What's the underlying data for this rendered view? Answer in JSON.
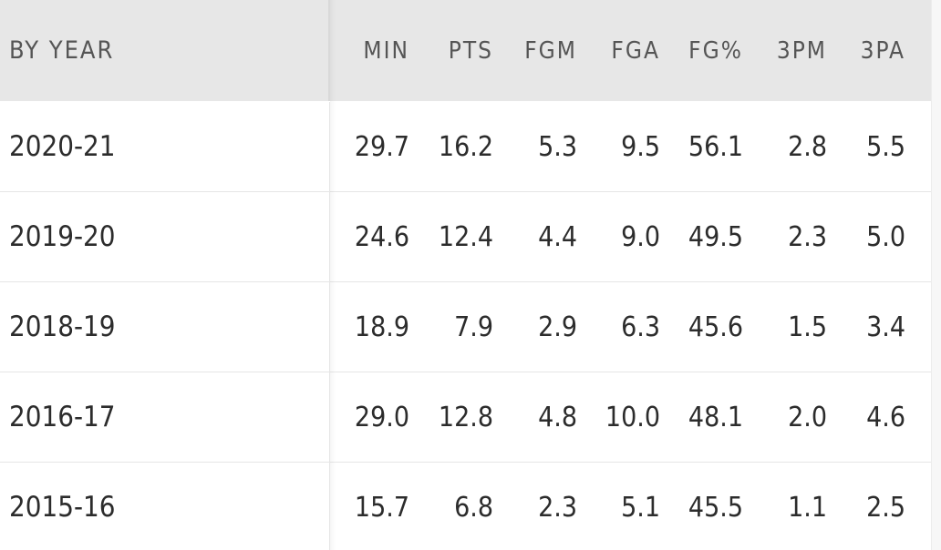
{
  "table": {
    "first_header": "BY YEAR",
    "columns": [
      "MIN",
      "PTS",
      "FGM",
      "FGA",
      "FG%",
      "3PM",
      "3PA"
    ],
    "rows": [
      {
        "year": "2020-21",
        "values": [
          "29.7",
          "16.2",
          "5.3",
          "9.5",
          "56.1",
          "2.8",
          "5.5"
        ]
      },
      {
        "year": "2019-20",
        "values": [
          "24.6",
          "12.4",
          "4.4",
          "9.0",
          "49.5",
          "2.3",
          "5.0"
        ]
      },
      {
        "year": "2018-19",
        "values": [
          "18.9",
          "7.9",
          "2.9",
          "6.3",
          "45.6",
          "1.5",
          "3.4"
        ]
      },
      {
        "year": "2016-17",
        "values": [
          "29.0",
          "12.8",
          "4.8",
          "10.0",
          "48.1",
          "2.0",
          "4.6"
        ]
      },
      {
        "year": "2015-16",
        "values": [
          "15.7",
          "6.8",
          "2.3",
          "5.1",
          "45.5",
          "1.1",
          "2.5"
        ]
      }
    ]
  }
}
